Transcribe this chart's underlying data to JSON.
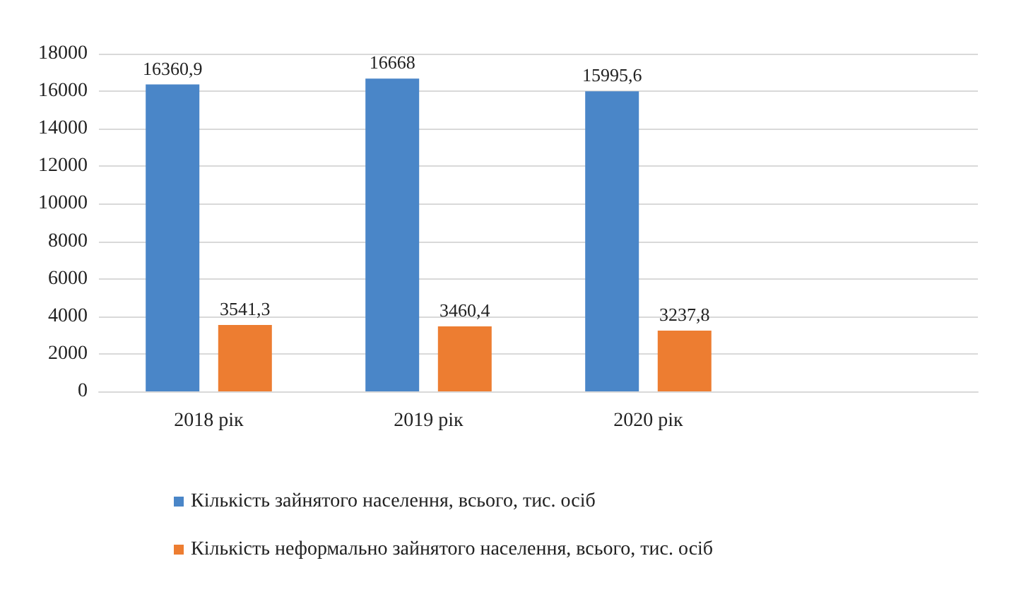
{
  "chart_data": {
    "type": "bar",
    "categories": [
      "2018 рік",
      "2019 рік",
      "2020 рік",
      null
    ],
    "series": [
      {
        "name": "Кількість зайнятого населення, всього, тис. осіб",
        "color": "#4a86c8",
        "values": [
          16360.9,
          16668,
          15995.6,
          null
        ],
        "value_labels": [
          "16360,9",
          "16668",
          "15995,6",
          null
        ]
      },
      {
        "name": "Кількість неформально зайнятого населення, всього, тис. осіб",
        "color": "#ed7d31",
        "values": [
          3541.3,
          3460.4,
          3237.8,
          null
        ],
        "value_labels": [
          "3541,3",
          "3460,4",
          "3237,8",
          null
        ]
      }
    ],
    "ylim": [
      0,
      18000
    ],
    "yticks": [
      0,
      2000,
      4000,
      6000,
      8000,
      10000,
      12000,
      14000,
      16000,
      18000
    ],
    "grid": "y",
    "legend": "bottom"
  }
}
